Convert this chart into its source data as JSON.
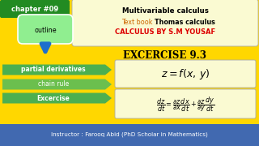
{
  "bg_color": "#FFD700",
  "chapter_text": "chapter #09",
  "chapter_bg": "#228B22",
  "chapter_fg": "#FFFFFF",
  "title1": "Multivariable calculus",
  "title2_orange": "Text book : ",
  "title2_black": "Thomas calculus",
  "title3": "CALCULUS BY S.M YOUSAF",
  "title_box_bg": "#FAFAD2",
  "title_box_edge": "#AAAAAA",
  "outline_text": "outline",
  "outline_bg": "#90EE90",
  "outline_edge": "#FFFFFF",
  "arrow_color": "#1E6FCC",
  "excercise_title": "EXCERCISE 9.3",
  "menu_items": [
    "partial derivatives",
    "chain rule",
    "Excercise"
  ],
  "menu_colors": [
    "#4CAF50",
    "#6BBF4E",
    "#4CAF50"
  ],
  "menu_fg": "#FFFFFF",
  "menu_bold": [
    true,
    false,
    true
  ],
  "formula_box_bg": "#FAFAD2",
  "formula_box_edge": "#AAAAAA",
  "bottom_text": "Instructor : Farooq Abid (PhD Scholar in Mathematics)",
  "bottom_bg": "#4169B0",
  "bottom_fg": "#FFFFFF"
}
